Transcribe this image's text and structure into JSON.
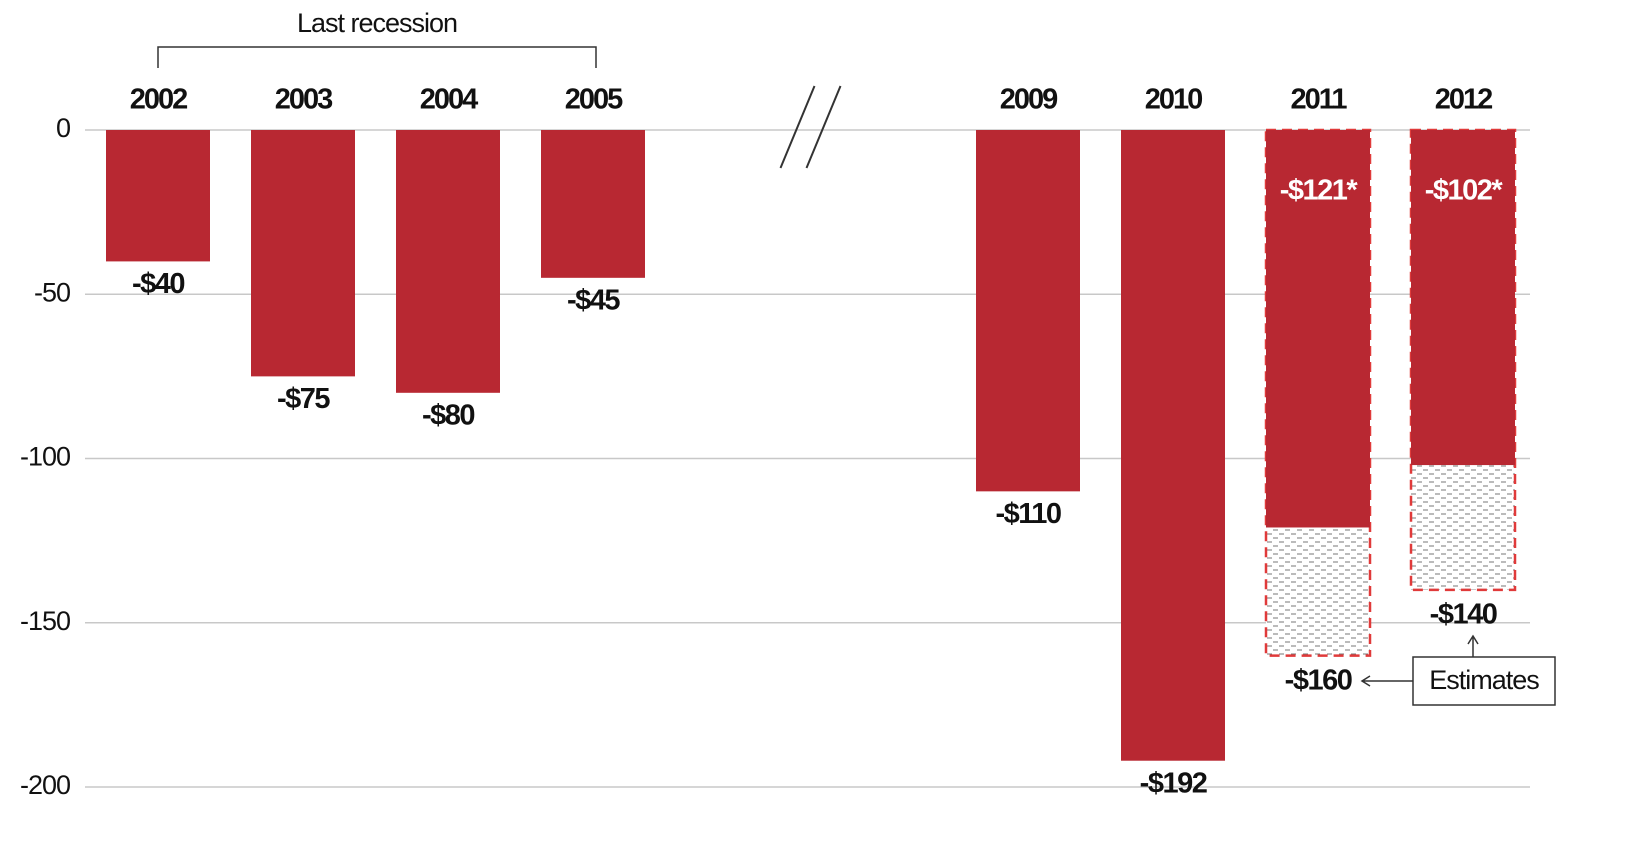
{
  "chart_data": {
    "type": "bar",
    "categories": [
      "2002",
      "2003",
      "2004",
      "2005",
      "2009",
      "2010",
      "2011",
      "2012"
    ],
    "values": [
      -40,
      -75,
      -80,
      -45,
      -110,
      -192,
      -121,
      -102
    ],
    "value_labels": [
      "-$40",
      "-$75",
      "-$80",
      "-$45",
      "-$110",
      "-$192",
      "-$121*",
      "-$102*"
    ],
    "color": "#b82832",
    "estimates": {
      "label": "Estimates",
      "color": "#e03a3a",
      "values": [
        null,
        null,
        null,
        null,
        null,
        null,
        -160,
        -140
      ],
      "value_labels": [
        null,
        null,
        null,
        null,
        null,
        null,
        "-$160",
        "-$140"
      ]
    },
    "annotation": "Last recession",
    "axis_break_after": 3,
    "ylim": [
      -200,
      0
    ],
    "yticks": [
      0,
      -50,
      -100,
      -150,
      -200
    ],
    "grid": true
  }
}
